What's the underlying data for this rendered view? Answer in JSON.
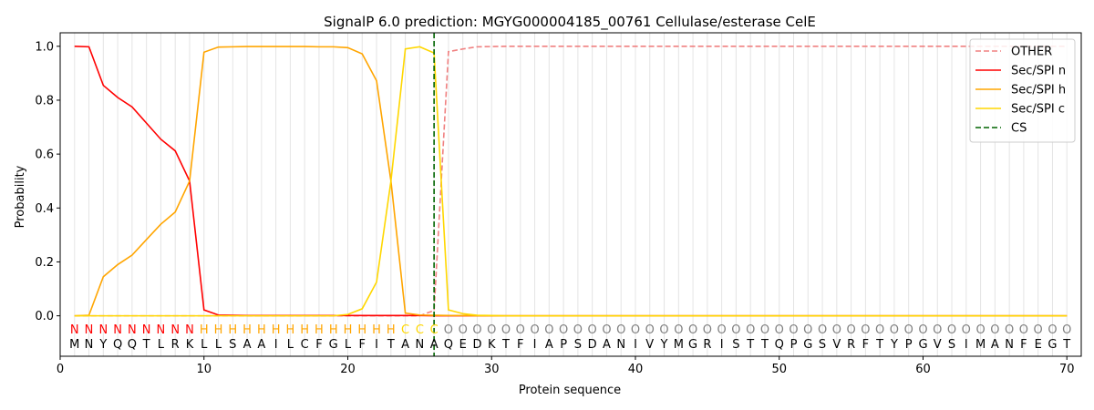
{
  "chart_data": {
    "type": "line",
    "title": "SignalP 6.0 prediction: MGYG000004185_00761 Cellulase/esterase CelE",
    "xlabel": "Protein sequence",
    "ylabel": "Probability",
    "xlim": [
      0,
      71
    ],
    "ylim": [
      -0.15,
      1.05
    ],
    "x_ticks": [
      0,
      10,
      20,
      30,
      40,
      50,
      60,
      70
    ],
    "y_ticks": [
      0.0,
      0.2,
      0.4,
      0.6,
      0.8,
      1.0
    ],
    "x_tick_labels": [
      "0",
      "10",
      "20",
      "30",
      "40",
      "50",
      "60",
      "70"
    ],
    "y_tick_labels": [
      "0.0",
      "0.2",
      "0.4",
      "0.6",
      "0.8",
      "1.0"
    ],
    "grid": "vertical lines at every residue",
    "legend_position": "top-right",
    "sequence": [
      "M",
      "N",
      "Y",
      "Q",
      "Q",
      "T",
      "L",
      "R",
      "K",
      "L",
      "L",
      "S",
      "A",
      "A",
      "I",
      "L",
      "C",
      "F",
      "G",
      "L",
      "F",
      "I",
      "T",
      "A",
      "N",
      "A",
      "Q",
      "E",
      "D",
      "K",
      "T",
      "F",
      "I",
      "A",
      "P",
      "S",
      "D",
      "A",
      "N",
      "I",
      "V",
      "Y",
      "M",
      "G",
      "R",
      "I",
      "S",
      "T",
      "T",
      "Q",
      "P",
      "G",
      "S",
      "V",
      "R",
      "F",
      "T",
      "Y",
      "P",
      "G",
      "V",
      "S",
      "I",
      "M",
      "A",
      "N",
      "F",
      "E",
      "G",
      "T"
    ],
    "region_labels": [
      "N",
      "N",
      "N",
      "N",
      "N",
      "N",
      "N",
      "N",
      "N",
      "H",
      "H",
      "H",
      "H",
      "H",
      "H",
      "H",
      "H",
      "H",
      "H",
      "H",
      "H",
      "H",
      "H",
      "C",
      "C",
      "C",
      "O",
      "O",
      "O",
      "O",
      "O",
      "O",
      "O",
      "O",
      "O",
      "O",
      "O",
      "O",
      "O",
      "O",
      "O",
      "O",
      "O",
      "O",
      "O",
      "O",
      "O",
      "O",
      "O",
      "O",
      "O",
      "O",
      "O",
      "O",
      "O",
      "O",
      "O",
      "O",
      "O",
      "O",
      "O",
      "O",
      "O",
      "O",
      "O",
      "O",
      "O",
      "O",
      "O",
      "O"
    ],
    "region_colors": {
      "N": "#ff0000",
      "H": "#ffa500",
      "C": "#ffd700",
      "O": "#808080"
    },
    "cleavage_site": 26,
    "series": [
      {
        "name": "OTHER",
        "color": "#f08080",
        "dash": true,
        "values": [
          0,
          0,
          0,
          0,
          0,
          0,
          0,
          0,
          0,
          0,
          0,
          0,
          0,
          0,
          0,
          0,
          0,
          0,
          0,
          0,
          0,
          0,
          0,
          0,
          0,
          0.02,
          0.98,
          0.99,
          0.998,
          0.999,
          1,
          1,
          1,
          1,
          1,
          1,
          1,
          1,
          1,
          1,
          1,
          1,
          1,
          1,
          1,
          1,
          1,
          1,
          1,
          1,
          1,
          1,
          1,
          1,
          1,
          1,
          1,
          1,
          1,
          1,
          1,
          1,
          1,
          1,
          1,
          1,
          1,
          1,
          1,
          1
        ]
      },
      {
        "name": "Sec/SPI n",
        "color": "#ff0000",
        "dash": false,
        "values": [
          1.0,
          0.998,
          0.855,
          0.81,
          0.775,
          0.715,
          0.655,
          0.612,
          0.5,
          0.022,
          0.003,
          0.002,
          0.001,
          0.001,
          0.001,
          0.001,
          0.001,
          0.001,
          0.001,
          0.001,
          0.001,
          0.001,
          0.001,
          0.001,
          0.001,
          0,
          0,
          0,
          0,
          0,
          0,
          0,
          0,
          0,
          0,
          0,
          0,
          0,
          0,
          0,
          0,
          0,
          0,
          0,
          0,
          0,
          0,
          0,
          0,
          0,
          0,
          0,
          0,
          0,
          0,
          0,
          0,
          0,
          0,
          0,
          0,
          0,
          0,
          0,
          0,
          0,
          0,
          0,
          0,
          0
        ]
      },
      {
        "name": "Sec/SPI h",
        "color": "#ffa500",
        "dash": false,
        "values": [
          0,
          0.002,
          0.145,
          0.19,
          0.225,
          0.283,
          0.34,
          0.385,
          0.5,
          0.978,
          0.997,
          0.998,
          0.999,
          0.999,
          0.999,
          0.999,
          0.999,
          0.998,
          0.998,
          0.995,
          0.972,
          0.872,
          0.5,
          0.01,
          0.003,
          0.002,
          0.001,
          0.001,
          0,
          0,
          0,
          0,
          0,
          0,
          0,
          0,
          0,
          0,
          0,
          0,
          0,
          0,
          0,
          0,
          0,
          0,
          0,
          0,
          0,
          0,
          0,
          0,
          0,
          0,
          0,
          0,
          0,
          0,
          0,
          0,
          0,
          0,
          0,
          0,
          0,
          0,
          0,
          0,
          0,
          0
        ]
      },
      {
        "name": "Sec/SPI c",
        "color": "#ffd700",
        "dash": false,
        "values": [
          0,
          0,
          0,
          0,
          0,
          0,
          0,
          0,
          0,
          0,
          0,
          0,
          0,
          0,
          0,
          0,
          0,
          0,
          0,
          0.005,
          0.026,
          0.125,
          0.5,
          0.99,
          0.998,
          0.975,
          0.022,
          0.008,
          0.002,
          0.001,
          0,
          0,
          0,
          0,
          0,
          0,
          0,
          0,
          0,
          0,
          0,
          0,
          0,
          0,
          0,
          0,
          0,
          0,
          0,
          0,
          0,
          0,
          0,
          0,
          0,
          0,
          0,
          0,
          0,
          0,
          0,
          0,
          0,
          0,
          0,
          0,
          0,
          0,
          0,
          0
        ]
      },
      {
        "name": "CS",
        "color": "#006400",
        "dash": true,
        "vertical_at": 26
      }
    ]
  }
}
